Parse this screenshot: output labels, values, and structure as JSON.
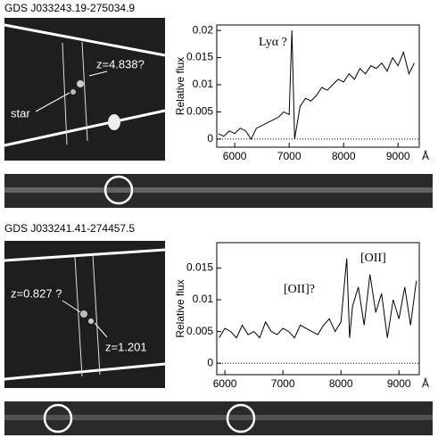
{
  "panels": [
    {
      "title": "GDS J033243.19-275034.9",
      "image_labels": [
        "z=4.838?",
        "star"
      ]
    },
    {
      "title": "GDS J033241.41-274457.5",
      "image_labels": [
        "z=0.827 ?",
        "z=1.201"
      ]
    }
  ],
  "chart_data": [
    {
      "type": "line",
      "ylabel": "Relative flux",
      "xlabel": "Å",
      "annotations": [
        "Lyα ?"
      ],
      "x": [
        5700,
        5800,
        5900,
        6000,
        6100,
        6200,
        6300,
        6400,
        6500,
        6600,
        6700,
        6800,
        6900,
        7000,
        7050,
        7100,
        7200,
        7300,
        7400,
        7500,
        7600,
        7700,
        7800,
        7900,
        8000,
        8100,
        8200,
        8300,
        8400,
        8500,
        8600,
        8700,
        8800,
        8900,
        9000,
        9100,
        9200,
        9300
      ],
      "values": [
        0.001,
        0.0005,
        0.0015,
        0.001,
        0.002,
        0.0015,
        0.0,
        0.002,
        0.0025,
        0.003,
        0.0035,
        0.004,
        0.005,
        0.0045,
        0.02,
        0.0,
        0.006,
        0.0075,
        0.007,
        0.008,
        0.0095,
        0.009,
        0.01,
        0.011,
        0.0105,
        0.012,
        0.011,
        0.013,
        0.012,
        0.0135,
        0.013,
        0.014,
        0.0125,
        0.015,
        0.0135,
        0.016,
        0.012,
        0.014
      ],
      "color": "#000000",
      "xlim": [
        5670,
        9390
      ],
      "ylim": [
        -0.0015,
        0.021
      ],
      "xticks": [
        6000,
        7000,
        8000,
        9000
      ],
      "yticks": [
        0,
        0.005,
        0.01,
        0.015,
        0.02
      ]
    },
    {
      "type": "line",
      "ylabel": "Relative flux",
      "xlabel": "Å",
      "annotations": [
        "[OII]?",
        "[OII]"
      ],
      "x": [
        5900,
        6000,
        6100,
        6200,
        6300,
        6400,
        6500,
        6600,
        6700,
        6800,
        6900,
        7000,
        7100,
        7200,
        7300,
        7400,
        7500,
        7600,
        7700,
        7800,
        7900,
        8000,
        8100,
        8150,
        8200,
        8300,
        8400,
        8500,
        8600,
        8700,
        8800,
        8900,
        9000,
        9100,
        9200,
        9300
      ],
      "values": [
        0.004,
        0.0055,
        0.005,
        0.004,
        0.006,
        0.0045,
        0.005,
        0.004,
        0.0065,
        0.005,
        0.0045,
        0.0055,
        0.005,
        0.004,
        0.006,
        0.0055,
        0.005,
        0.0045,
        0.006,
        0.007,
        0.005,
        0.0065,
        0.0165,
        0.004,
        0.009,
        0.012,
        0.006,
        0.014,
        0.008,
        0.011,
        0.004,
        0.01,
        0.007,
        0.012,
        0.006,
        0.013
      ],
      "color": "#000000",
      "xlim": [
        5860,
        9350
      ],
      "ylim": [
        -0.0018,
        0.019
      ],
      "xticks": [
        6000,
        7000,
        8000,
        9000
      ],
      "yticks": [
        0,
        0.005,
        0.01,
        0.015
      ]
    }
  ]
}
